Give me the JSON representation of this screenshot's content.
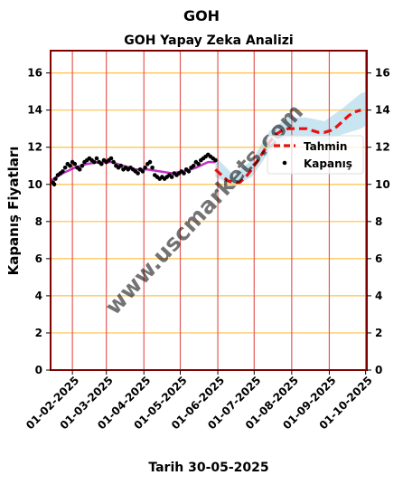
{
  "chart_data": {
    "type": "line",
    "title": "GOH",
    "subtitle": "GOH Yapay Zeka Analizi",
    "xlabel": "Tarih 30-05-2025",
    "ylabel": "Kapanış Fiyatları",
    "ylim": [
      0,
      17.2
    ],
    "xlim": [
      "2025-01-14",
      "2025-10-02"
    ],
    "yticks": [
      "0",
      "2",
      "4",
      "6",
      "8",
      "10",
      "12",
      "14",
      "16"
    ],
    "xticks": [
      "01-02-2025",
      "01-03-2025",
      "01-04-2025",
      "01-05-2025",
      "01-06-2025",
      "01-07-2025",
      "01-08-2025",
      "01-09-2025",
      "01-10-2025"
    ],
    "grid": true,
    "legend": {
      "placement": "right",
      "entries": [
        "Tahmin",
        "Kapanış"
      ]
    },
    "watermark": "www.uscmarkets.com",
    "colors": {
      "forecast": "#e81010",
      "close": "#000000",
      "trend": "#b000b0",
      "band": "#bfe0ee",
      "hgrid": "#ffc04a",
      "vgrid": "#e45a5a",
      "frame": "#800000",
      "watermark": "#8a8a8a"
    },
    "series": [
      {
        "name": "Kapanış",
        "points": [
          [
            "2025-01-16",
            10.1
          ],
          [
            "2025-01-17",
            10.0
          ],
          [
            "2025-01-18",
            10.3
          ],
          [
            "2025-01-20",
            10.5
          ],
          [
            "2025-01-22",
            10.6
          ],
          [
            "2025-01-24",
            10.7
          ],
          [
            "2025-01-26",
            10.9
          ],
          [
            "2025-01-28",
            11.1
          ],
          [
            "2025-01-30",
            11.0
          ],
          [
            "2025-02-01",
            11.2
          ],
          [
            "2025-02-03",
            11.1
          ],
          [
            "2025-02-05",
            10.9
          ],
          [
            "2025-02-07",
            10.8
          ],
          [
            "2025-02-09",
            11.0
          ],
          [
            "2025-02-11",
            11.2
          ],
          [
            "2025-02-13",
            11.3
          ],
          [
            "2025-02-15",
            11.4
          ],
          [
            "2025-02-17",
            11.3
          ],
          [
            "2025-02-19",
            11.2
          ],
          [
            "2025-02-21",
            11.4
          ],
          [
            "2025-02-23",
            11.2
          ],
          [
            "2025-02-25",
            11.1
          ],
          [
            "2025-02-27",
            11.3
          ],
          [
            "2025-03-01",
            11.2
          ],
          [
            "2025-03-03",
            11.3
          ],
          [
            "2025-03-05",
            11.4
          ],
          [
            "2025-03-07",
            11.2
          ],
          [
            "2025-03-09",
            11.0
          ],
          [
            "2025-03-11",
            10.9
          ],
          [
            "2025-03-13",
            11.0
          ],
          [
            "2025-03-15",
            10.8
          ],
          [
            "2025-03-17",
            10.9
          ],
          [
            "2025-03-19",
            10.8
          ],
          [
            "2025-03-21",
            10.9
          ],
          [
            "2025-03-23",
            10.8
          ],
          [
            "2025-03-25",
            10.7
          ],
          [
            "2025-03-27",
            10.6
          ],
          [
            "2025-03-29",
            10.8
          ],
          [
            "2025-03-31",
            10.7
          ],
          [
            "2025-04-02",
            10.9
          ],
          [
            "2025-04-04",
            11.1
          ],
          [
            "2025-04-06",
            11.2
          ],
          [
            "2025-04-08",
            10.9
          ],
          [
            "2025-04-10",
            10.5
          ],
          [
            "2025-04-12",
            10.4
          ],
          [
            "2025-04-14",
            10.3
          ],
          [
            "2025-04-16",
            10.4
          ],
          [
            "2025-04-18",
            10.3
          ],
          [
            "2025-04-20",
            10.4
          ],
          [
            "2025-04-22",
            10.5
          ],
          [
            "2025-04-24",
            10.4
          ],
          [
            "2025-04-26",
            10.6
          ],
          [
            "2025-04-28",
            10.5
          ],
          [
            "2025-04-30",
            10.6
          ],
          [
            "2025-05-02",
            10.7
          ],
          [
            "2025-05-04",
            10.6
          ],
          [
            "2025-05-06",
            10.8
          ],
          [
            "2025-05-08",
            10.7
          ],
          [
            "2025-05-10",
            10.9
          ],
          [
            "2025-05-12",
            11.0
          ],
          [
            "2025-05-14",
            11.2
          ],
          [
            "2025-05-16",
            11.1
          ],
          [
            "2025-05-18",
            11.3
          ],
          [
            "2025-05-20",
            11.4
          ],
          [
            "2025-05-22",
            11.5
          ],
          [
            "2025-05-24",
            11.6
          ],
          [
            "2025-05-26",
            11.5
          ],
          [
            "2025-05-28",
            11.4
          ],
          [
            "2025-05-30",
            11.3
          ]
        ]
      },
      {
        "name": "Tahmin",
        "points": [
          [
            "2025-05-30",
            10.8
          ],
          [
            "2025-06-04",
            10.5
          ],
          [
            "2025-06-09",
            10.2
          ],
          [
            "2025-06-14",
            10.1
          ],
          [
            "2025-06-19",
            10.1
          ],
          [
            "2025-06-24",
            10.4
          ],
          [
            "2025-06-29",
            10.8
          ],
          [
            "2025-07-04",
            11.3
          ],
          [
            "2025-07-09",
            11.8
          ],
          [
            "2025-07-14",
            12.3
          ],
          [
            "2025-07-19",
            12.7
          ],
          [
            "2025-07-24",
            12.9
          ],
          [
            "2025-07-29",
            13.0
          ],
          [
            "2025-08-03",
            13.0
          ],
          [
            "2025-08-08",
            13.0
          ],
          [
            "2025-08-13",
            13.0
          ],
          [
            "2025-08-18",
            12.9
          ],
          [
            "2025-08-23",
            12.8
          ],
          [
            "2025-08-28",
            12.8
          ],
          [
            "2025-09-02",
            12.9
          ],
          [
            "2025-09-07",
            13.1
          ],
          [
            "2025-09-12",
            13.4
          ],
          [
            "2025-09-17",
            13.7
          ],
          [
            "2025-09-22",
            13.9
          ],
          [
            "2025-09-27",
            14.0
          ]
        ]
      }
    ],
    "fit_line": [
      [
        "2025-01-14",
        10.2
      ],
      [
        "2025-01-24",
        10.6
      ],
      [
        "2025-02-03",
        10.9
      ],
      [
        "2025-02-13",
        11.1
      ],
      [
        "2025-02-23",
        11.2
      ],
      [
        "2025-03-05",
        11.2
      ],
      [
        "2025-03-15",
        11.0
      ],
      [
        "2025-03-25",
        10.8
      ],
      [
        "2025-04-04",
        10.8
      ],
      [
        "2025-04-14",
        10.7
      ],
      [
        "2025-04-24",
        10.6
      ],
      [
        "2025-05-04",
        10.7
      ],
      [
        "2025-05-14",
        10.9
      ],
      [
        "2025-05-24",
        11.2
      ],
      [
        "2025-05-30",
        11.2
      ]
    ],
    "band": [
      [
        "2025-05-30",
        10.4,
        11.5
      ],
      [
        "2025-06-14",
        9.9,
        10.5
      ],
      [
        "2025-06-29",
        10.4,
        11.3
      ],
      [
        "2025-07-14",
        11.8,
        12.9
      ],
      [
        "2025-07-29",
        12.5,
        13.6
      ],
      [
        "2025-08-13",
        12.5,
        13.6
      ],
      [
        "2025-08-28",
        12.3,
        13.4
      ],
      [
        "2025-09-12",
        12.7,
        14.1
      ],
      [
        "2025-09-27",
        13.0,
        14.9
      ],
      [
        "2025-10-02",
        13.2,
        15.0
      ]
    ]
  }
}
